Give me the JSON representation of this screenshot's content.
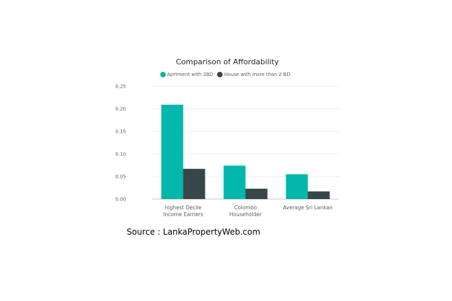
{
  "chart_data": {
    "type": "bar",
    "title": "Comparison of Affordability",
    "categories": [
      [
        "highest Decile",
        "Income Earners"
      ],
      [
        "Colombo",
        "Householder"
      ],
      [
        "Average Sri Lankan"
      ]
    ],
    "series": [
      {
        "name": "Aprtment with 2BD",
        "color": "#01b8aa",
        "values": [
          0.209,
          0.074,
          0.055
        ]
      },
      {
        "name": "House with more than 2 BD",
        "color": "#374649",
        "values": [
          0.067,
          0.023,
          0.017
        ]
      }
    ],
    "yticks": [
      "0.00",
      "0.05",
      "0.10",
      "0.15",
      "0.20",
      "0.25"
    ],
    "ylim": [
      0,
      0.25
    ],
    "grid": true,
    "legend_position": "top"
  },
  "source_text": "Source : LankaPropertyWeb.com"
}
